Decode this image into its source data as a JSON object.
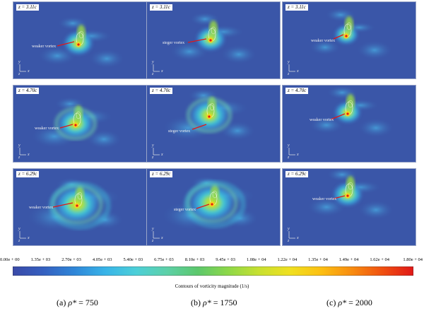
{
  "panels": [
    {
      "id": "a1",
      "z": "z = 3.11c",
      "vortex": "weaker vortex"
    },
    {
      "id": "b1",
      "z": "z = 3.11c",
      "vortex": "steger vortex"
    },
    {
      "id": "c1",
      "z": "z = 3.11c",
      "vortex": "weaker vortex"
    },
    {
      "id": "a2",
      "z": "z = 4.70c",
      "vortex": "weaker vortex"
    },
    {
      "id": "b2",
      "z": "z = 4.70c",
      "vortex": "steger vortex"
    },
    {
      "id": "c2",
      "z": "z = 4.70c",
      "vortex": "weaker vortex"
    },
    {
      "id": "a3",
      "z": "z = 6.29c",
      "vortex": "weaker vortex"
    },
    {
      "id": "b3",
      "z": "z = 6.29c",
      "vortex": "steger vortex"
    },
    {
      "id": "c3",
      "z": "z = 6.29c",
      "vortex": "weaker vortex"
    }
  ],
  "axis_labels": {
    "y": "y",
    "z": "z",
    "x": "x"
  },
  "colorbar": {
    "ticks": [
      "0.00e + 00",
      "1.35e + 03",
      "2.70e + 03",
      "4.05e + 03",
      "5.40e + 03",
      "6.75e + 03",
      "8.10e + 03",
      "9.45e + 03",
      "1.08e + 04",
      "1.22e + 04",
      "1.35e + 04",
      "1.49e + 04",
      "1.62e + 04",
      "1.80e + 04"
    ],
    "title": "Contours of vorticity magnitude (1/s)",
    "colors": [
      "#3a4aa8",
      "#3560c0",
      "#2f86d8",
      "#38b4e8",
      "#4ccfd8",
      "#5dd0a8",
      "#5cc86c",
      "#8ed848",
      "#c8e030",
      "#f0e020",
      "#fcc012",
      "#f88c10",
      "#f05010",
      "#e01818"
    ]
  },
  "captions": [
    {
      "id": "a",
      "prefix": "(a) ",
      "symbol": "ρ*",
      "value": " = 750"
    },
    {
      "id": "b",
      "prefix": "(b) ",
      "symbol": "ρ*",
      "value": " = 1750"
    },
    {
      "id": "c",
      "prefix": "(c) ",
      "symbol": "ρ*",
      "value": " = 2000"
    }
  ]
}
